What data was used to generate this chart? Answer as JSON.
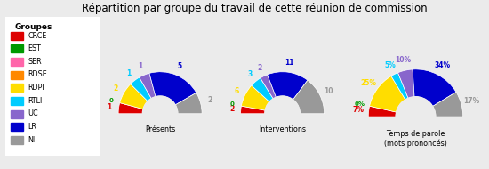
{
  "title": "Répartition par groupe du travail de cette réunion de commission",
  "groups": [
    "CRCE",
    "EST",
    "SER",
    "RDSE",
    "RDPI",
    "RTLI",
    "UC",
    "LR",
    "NI"
  ],
  "colors": [
    "#dd0000",
    "#009900",
    "#ff66aa",
    "#ff8800",
    "#ffdd00",
    "#00ccff",
    "#8866cc",
    "#0000cc",
    "#999999"
  ],
  "legend_title": "Groupes",
  "charts": [
    {
      "label": "Présents",
      "values": [
        1,
        0,
        0,
        0,
        2,
        1,
        1,
        5,
        2
      ],
      "annotations": [
        "1",
        "",
        "",
        "",
        "2",
        "1",
        "1",
        "5",
        "2"
      ],
      "zero_annotations": [
        "",
        "0",
        "",
        "",
        "",
        "",
        "",
        "",
        ""
      ]
    },
    {
      "label": "Interventions",
      "values": [
        2,
        0,
        0,
        0,
        6,
        3,
        2,
        11,
        10
      ],
      "annotations": [
        "2",
        "",
        "",
        "",
        "6",
        "3",
        "2",
        "11",
        "10"
      ],
      "zero_annotations": [
        "",
        "0",
        "",
        "",
        "",
        "",
        "",
        "",
        ""
      ]
    },
    {
      "label": "Temps de parole\n(mots prononcés)",
      "values": [
        7,
        0,
        0,
        0,
        25,
        5,
        10,
        34,
        17
      ],
      "annotations": [
        "7%",
        "",
        "",
        "",
        "25%",
        "5%",
        "10%",
        "34%",
        "17%"
      ],
      "zero_annotations": [
        "",
        "0%",
        "",
        "",
        "",
        "",
        "",
        "",
        ""
      ]
    }
  ],
  "background_color": "#ebebeb",
  "outer_r": 1.0,
  "inner_r": 0.42
}
